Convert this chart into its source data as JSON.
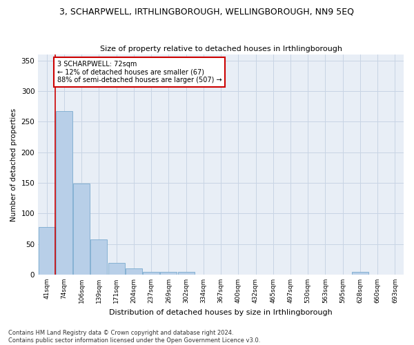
{
  "title": "3, SCHARPWELL, IRTHLINGBOROUGH, WELLINGBOROUGH, NN9 5EQ",
  "subtitle": "Size of property relative to detached houses in Irthlingborough",
  "xlabel": "Distribution of detached houses by size in Irthlingborough",
  "ylabel": "Number of detached properties",
  "bar_color": "#b8cfe8",
  "bar_edge_color": "#7aaace",
  "categories": [
    "41sqm",
    "74sqm",
    "106sqm",
    "139sqm",
    "171sqm",
    "204sqm",
    "237sqm",
    "269sqm",
    "302sqm",
    "334sqm",
    "367sqm",
    "400sqm",
    "432sqm",
    "465sqm",
    "497sqm",
    "530sqm",
    "563sqm",
    "595sqm",
    "628sqm",
    "660sqm",
    "693sqm"
  ],
  "values": [
    78,
    267,
    149,
    58,
    19,
    10,
    4,
    4,
    4,
    0,
    0,
    0,
    0,
    0,
    0,
    0,
    0,
    0,
    4,
    0,
    0
  ],
  "ylim": [
    0,
    360
  ],
  "yticks": [
    0,
    50,
    100,
    150,
    200,
    250,
    300,
    350
  ],
  "annotation_text": "3 SCHARPWELL: 72sqm\n← 12% of detached houses are smaller (67)\n88% of semi-detached houses are larger (507) →",
  "annotation_box_color": "#ffffff",
  "annotation_box_edge": "#cc0000",
  "property_line_color": "#cc0000",
  "grid_color": "#c8d4e4",
  "background_color": "#e8eef6",
  "footer_text": "Contains HM Land Registry data © Crown copyright and database right 2024.\nContains public sector information licensed under the Open Government Licence v3.0."
}
